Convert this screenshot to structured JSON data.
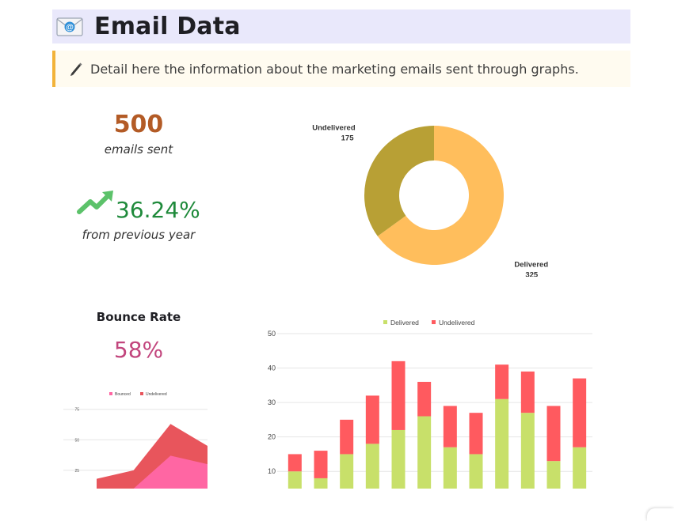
{
  "header": {
    "title": "Email Data",
    "icon": "envelope-icon"
  },
  "callout": {
    "text": "Detail here the information about the marketing emails sent through graphs.",
    "icon": "pen-icon",
    "accent": "#f2b33a"
  },
  "stats": {
    "emails_sent": "500",
    "emails_sent_label": "emails sent",
    "growth": "36.24%",
    "growth_label": "from previous year",
    "growth_icon": "trend-up-arrow-icon",
    "bounce_title": "Bounce Rate",
    "bounce_value": "58%"
  },
  "chart_data": [
    {
      "type": "pie",
      "variant": "donut",
      "labels": [
        "Delivered",
        "Undelivered"
      ],
      "values": [
        325,
        175
      ],
      "colors": [
        "#ffbe5c",
        "#b8a035"
      ]
    },
    {
      "type": "area",
      "stacked": true,
      "legend_position": "top",
      "series": [
        {
          "name": "Bounced",
          "values": [
            0,
            0,
            37,
            30
          ],
          "color": "#ff66a3"
        },
        {
          "name": "Undelivered",
          "values": [
            18,
            25,
            63,
            45
          ],
          "color": "#e8555c"
        }
      ],
      "y_ticks": [
        25,
        50,
        75
      ],
      "grid": true
    },
    {
      "type": "bar",
      "stacked": true,
      "legend_position": "top",
      "series": [
        {
          "name": "Delivered",
          "values": [
            10,
            8,
            15,
            18,
            22,
            26,
            17,
            15,
            31,
            27,
            13,
            17
          ],
          "color": "#c8e06a"
        },
        {
          "name": "Undelivered",
          "values": [
            5,
            8,
            10,
            14,
            20,
            10,
            12,
            12,
            10,
            12,
            16,
            20
          ],
          "color": "#ff5a5f"
        }
      ],
      "y_ticks": [
        10,
        20,
        30,
        40,
        50
      ],
      "grid": true
    }
  ]
}
